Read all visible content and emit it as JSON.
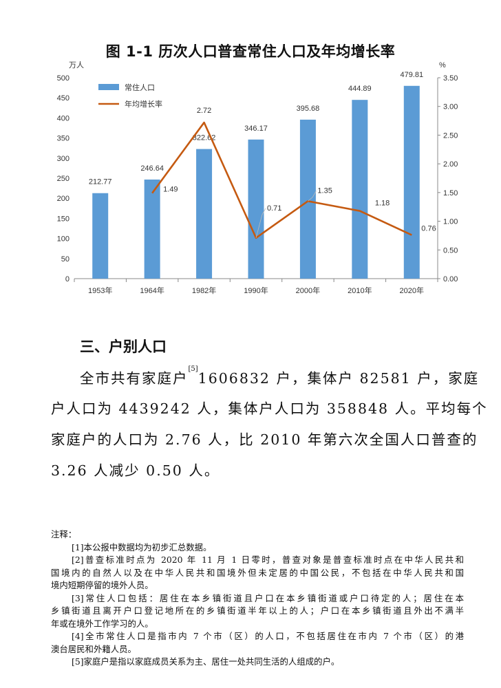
{
  "chart_title": "图 1-1    历次人口普查常住人口及年均增长率",
  "chart_data": {
    "type": "bar+line",
    "categories": [
      "1953年",
      "1964年",
      "1982年",
      "1990年",
      "2000年",
      "2010年",
      "2020年"
    ],
    "y_left_label": "万人",
    "y_right_label": "%",
    "y_left_ticks": [
      "0",
      "50",
      "100",
      "150",
      "200",
      "250",
      "300",
      "350",
      "400",
      "450",
      "500"
    ],
    "y_right_ticks": [
      "0.00",
      "0.50",
      "1.00",
      "1.50",
      "2.00",
      "2.50",
      "3.00",
      "3.50"
    ],
    "ylim_left": [
      0,
      500
    ],
    "ylim_right": [
      0,
      3.5
    ],
    "series": [
      {
        "name": "常住人口",
        "axis": "left",
        "kind": "bar",
        "color": "#5b9bd5",
        "values": [
          212.77,
          246.64,
          322.62,
          346.17,
          395.68,
          444.89,
          479.81
        ],
        "labels": [
          "212.77",
          "246.64",
          "322.62",
          "346.17",
          "395.68",
          "444.89",
          "479.81"
        ]
      },
      {
        "name": "年均增长率",
        "axis": "right",
        "kind": "line",
        "color": "#c55a11",
        "values": [
          null,
          1.49,
          2.72,
          0.71,
          1.35,
          1.18,
          0.76
        ],
        "labels": [
          "",
          "1.49",
          "2.72",
          "0.71",
          "1.35",
          "1.18",
          "0.76"
        ]
      }
    ],
    "legend_position": "top-left"
  },
  "section_heading": "三、户别人口",
  "paragraph": {
    "line1_a": "全市共有家庭户",
    "line1_sup": "[5]",
    "line1_b": "1606832 户，集体户 82581 户，家庭",
    "line2": "户人口为 4439242 人，集体户人口为 358848 人。平均每个",
    "line3": "家庭户的人口为 2.76 人，比 2010 年第六次全国人口普查的",
    "line4": "3.26 人减少 0.50 人。"
  },
  "notes": {
    "heading": "注释：",
    "n1": "[1]本公报中数据均为初步汇总数据。",
    "n2_a": "[2]普查标准时点为 2020 年 11 月 1 日零时，普查对象是普查标准时点在中华人民共和",
    "n2_b": "国境内的自然人以及在中华人民共和国境外但未定居的中国公民，不包括在中华人民共和国",
    "n2_c": "境内短期停留的境外人员。",
    "n3_a": "[3]常住人口包括：居住在本乡镇街道且户口在本乡镇街道或户口待定的人；居住在本",
    "n3_b": "乡镇街道且离开户口登记地所在的乡镇街道半年以上的人；户口在本乡镇街道且外出不满半",
    "n3_c": "年或在境外工作学习的人。",
    "n4_a": "[4]全市常住人口是指市内 7 个市（区）的人口，不包括居住在市内 7 个市（区）的港",
    "n4_b": "澳台居民和外籍人员。",
    "n5": "[5]家庭户是指以家庭成员关系为主、居住一处共同生活的人组成的户。"
  }
}
